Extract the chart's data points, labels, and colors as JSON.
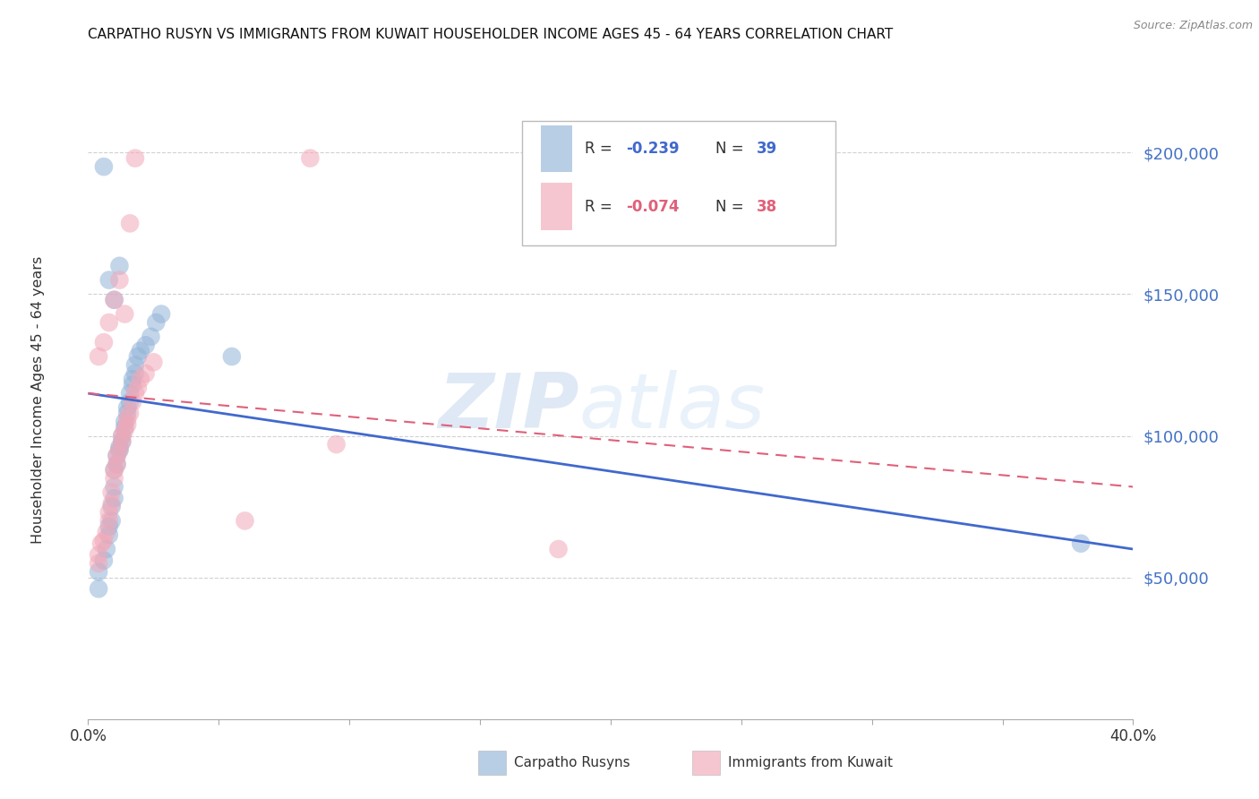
{
  "title": "CARPATHO RUSYN VS IMMIGRANTS FROM KUWAIT HOUSEHOLDER INCOME AGES 45 - 64 YEARS CORRELATION CHART",
  "source": "Source: ZipAtlas.com",
  "ylabel": "Householder Income Ages 45 - 64 years",
  "xlim": [
    0.0,
    0.4
  ],
  "ylim": [
    0,
    220000
  ],
  "ytick_vals": [
    50000,
    100000,
    150000,
    200000
  ],
  "ytick_labels": [
    "$50,000",
    "$100,000",
    "$150,000",
    "$200,000"
  ],
  "xtick_vals": [
    0.0,
    0.05,
    0.1,
    0.15,
    0.2,
    0.25,
    0.3,
    0.35,
    0.4
  ],
  "xtick_labels": [
    "0.0%",
    "",
    "",
    "",
    "",
    "",
    "",
    "",
    "40.0%"
  ],
  "background_color": "#ffffff",
  "grid_color": "#cccccc",
  "blue_color": "#92b4d7",
  "pink_color": "#f2a8b8",
  "blue_line_color": "#4169cd",
  "pink_line_color": "#e0607a",
  "watermark_zip": "ZIP",
  "watermark_atlas": "atlas",
  "legend_R_blue": "-0.239",
  "legend_N_blue": "39",
  "legend_R_pink": "-0.074",
  "legend_N_pink": "38",
  "label_blue": "Carpatho Rusyns",
  "label_pink": "Immigrants from Kuwait",
  "blue_scatter_x": [
    0.004,
    0.004,
    0.006,
    0.007,
    0.008,
    0.008,
    0.009,
    0.009,
    0.01,
    0.01,
    0.01,
    0.011,
    0.011,
    0.012,
    0.012,
    0.013,
    0.013,
    0.014,
    0.014,
    0.015,
    0.015,
    0.016,
    0.016,
    0.017,
    0.017,
    0.018,
    0.018,
    0.019,
    0.02,
    0.022,
    0.024,
    0.026,
    0.028,
    0.055,
    0.008,
    0.01,
    0.012,
    0.38,
    0.006
  ],
  "blue_scatter_y": [
    46000,
    52000,
    56000,
    60000,
    65000,
    68000,
    70000,
    75000,
    78000,
    82000,
    88000,
    90000,
    93000,
    95000,
    96000,
    98000,
    100000,
    103000,
    105000,
    108000,
    110000,
    112000,
    115000,
    118000,
    120000,
    122000,
    125000,
    128000,
    130000,
    132000,
    135000,
    140000,
    143000,
    128000,
    155000,
    148000,
    160000,
    62000,
    195000
  ],
  "pink_scatter_x": [
    0.004,
    0.004,
    0.005,
    0.006,
    0.007,
    0.008,
    0.008,
    0.009,
    0.009,
    0.01,
    0.01,
    0.011,
    0.011,
    0.012,
    0.013,
    0.013,
    0.014,
    0.015,
    0.015,
    0.016,
    0.017,
    0.018,
    0.019,
    0.02,
    0.022,
    0.025,
    0.06,
    0.095,
    0.18,
    0.004,
    0.006,
    0.008,
    0.085,
    0.01,
    0.012,
    0.014,
    0.016,
    0.018
  ],
  "pink_scatter_y": [
    55000,
    58000,
    62000,
    63000,
    66000,
    70000,
    73000,
    76000,
    80000,
    85000,
    88000,
    90000,
    93000,
    95000,
    98000,
    100000,
    102000,
    104000,
    106000,
    108000,
    112000,
    115000,
    117000,
    120000,
    122000,
    126000,
    70000,
    97000,
    60000,
    128000,
    133000,
    140000,
    198000,
    148000,
    155000,
    143000,
    175000,
    198000
  ],
  "blue_line_x": [
    0.0,
    0.4
  ],
  "blue_line_y": [
    115000,
    60000
  ],
  "pink_line_x": [
    0.0,
    0.4
  ],
  "pink_line_y": [
    115000,
    82000
  ]
}
